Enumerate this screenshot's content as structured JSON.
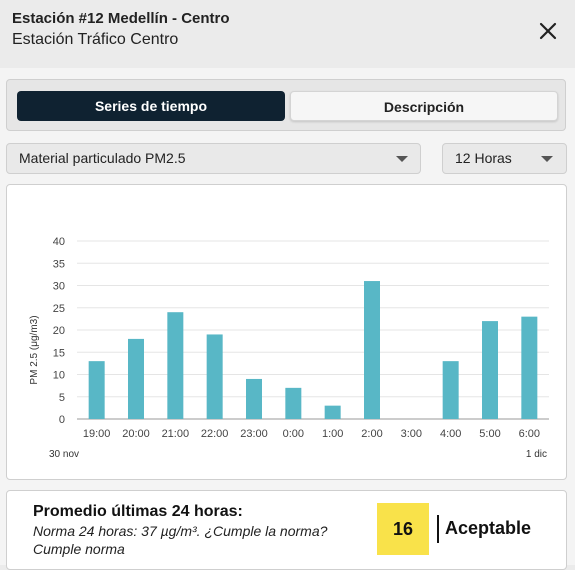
{
  "header": {
    "title": "Estación #12 Medellín - Centro",
    "subtitle": "Estación Tráfico Centro",
    "close_icon": "close-icon"
  },
  "tabs": [
    {
      "label": "Series de tiempo",
      "active": true
    },
    {
      "label": "Descripción",
      "active": false
    }
  ],
  "filters": {
    "pollutant": "Material particulado PM2.5",
    "hours": "12 Horas"
  },
  "chart_data": {
    "type": "bar",
    "categories": [
      "19:00",
      "20:00",
      "21:00",
      "22:00",
      "23:00",
      "0:00",
      "1:00",
      "2:00",
      "3:00",
      "4:00",
      "5:00",
      "6:00"
    ],
    "values": [
      13,
      18,
      24,
      19,
      9,
      7,
      3,
      31,
      null,
      13,
      22,
      23
    ],
    "ylabel": "PM 2.5 (μg/m3)",
    "xlabel": "",
    "ylim": [
      0,
      40
    ],
    "yticks": [
      0,
      5,
      10,
      15,
      20,
      25,
      30,
      35,
      40
    ],
    "date_start": "30 nov",
    "date_end": "1 dic",
    "bar_color": "#58b7c6",
    "grid": true
  },
  "summary": {
    "title": "Promedio últimas 24 horas:",
    "norm": "Norma 24 horas: 37 µg/m³. ¿Cumple la norma?",
    "compliance": "Cumple norma",
    "average": "16",
    "category": "Aceptable",
    "category_color": "#f9e24a"
  }
}
